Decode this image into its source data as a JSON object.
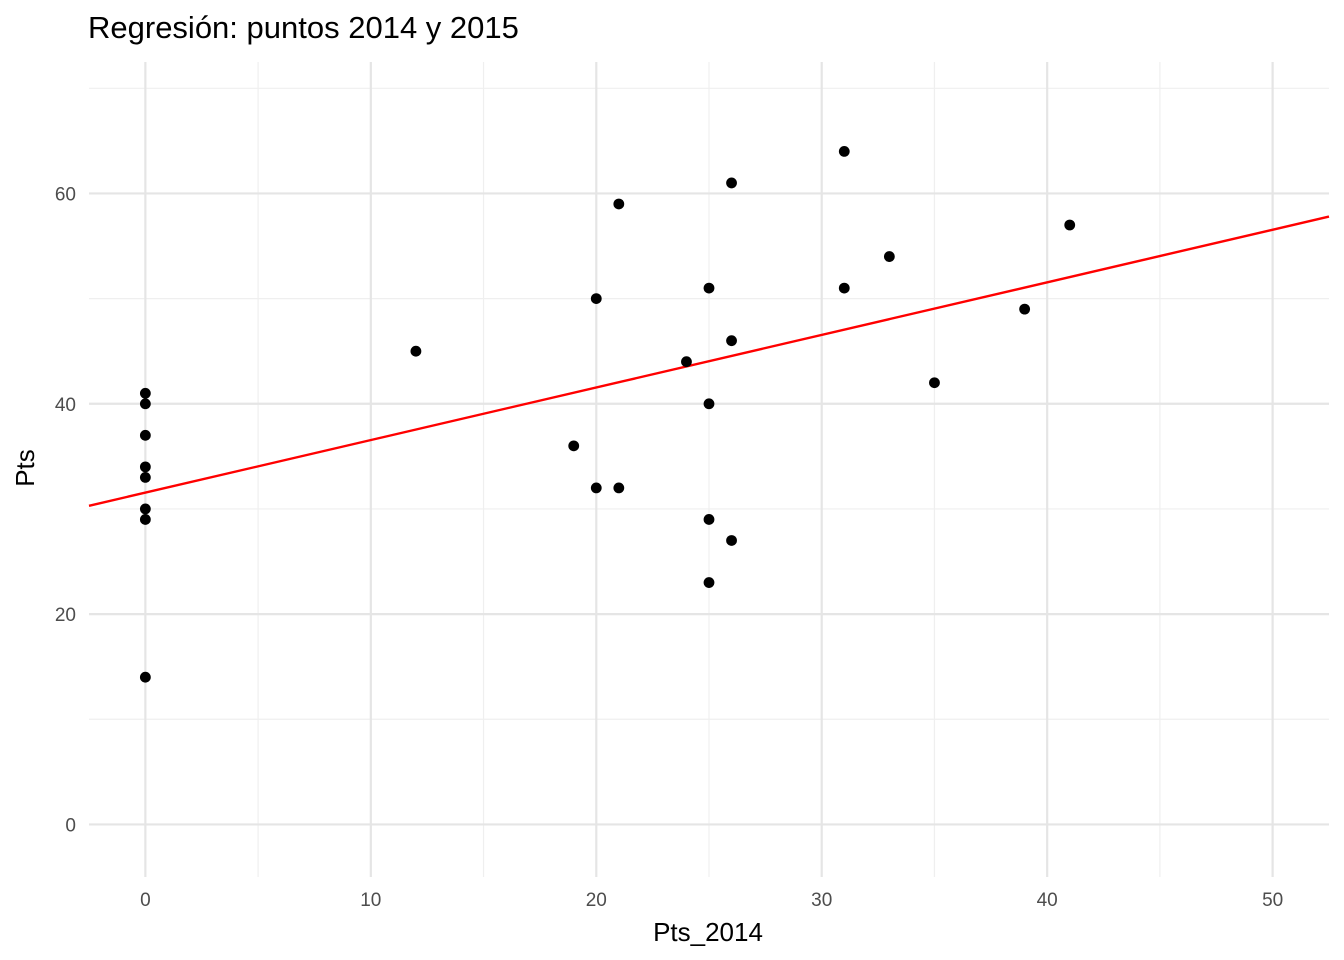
{
  "chart_data": {
    "type": "scatter",
    "title": "Regresión: puntos 2014 y 2015",
    "xlabel": "Pts_2014",
    "ylabel": "Pts",
    "xlim": [
      -2.5,
      52.5
    ],
    "ylim": [
      -5,
      72.5
    ],
    "x_ticks": [
      0,
      10,
      20,
      30,
      40,
      50
    ],
    "y_ticks": [
      0,
      20,
      40,
      60
    ],
    "x_ticks_minor": [
      5,
      15,
      25,
      35,
      45
    ],
    "y_ticks_minor": [
      10,
      30,
      50,
      70
    ],
    "grid": true,
    "legend": "none",
    "colors": {
      "points": "#000000",
      "regression_line": "#ff0000",
      "grid": "#ebebeb",
      "background": "#ffffff"
    },
    "series": [
      {
        "type": "scatter",
        "points": [
          {
            "x": 0,
            "y": 41
          },
          {
            "x": 0,
            "y": 40
          },
          {
            "x": 0,
            "y": 37
          },
          {
            "x": 0,
            "y": 34
          },
          {
            "x": 0,
            "y": 33
          },
          {
            "x": 0,
            "y": 30
          },
          {
            "x": 0,
            "y": 29
          },
          {
            "x": 0,
            "y": 14
          },
          {
            "x": 12,
            "y": 45
          },
          {
            "x": 19,
            "y": 36
          },
          {
            "x": 20,
            "y": 50
          },
          {
            "x": 20,
            "y": 32
          },
          {
            "x": 21,
            "y": 59
          },
          {
            "x": 21,
            "y": 32
          },
          {
            "x": 24,
            "y": 44
          },
          {
            "x": 25,
            "y": 51
          },
          {
            "x": 25,
            "y": 40
          },
          {
            "x": 25,
            "y": 29
          },
          {
            "x": 25,
            "y": 23
          },
          {
            "x": 26,
            "y": 61
          },
          {
            "x": 26,
            "y": 46
          },
          {
            "x": 26,
            "y": 27
          },
          {
            "x": 31,
            "y": 64
          },
          {
            "x": 31,
            "y": 51
          },
          {
            "x": 33,
            "y": 54
          },
          {
            "x": 35,
            "y": 42
          },
          {
            "x": 39,
            "y": 49
          },
          {
            "x": 41,
            "y": 57
          }
        ]
      },
      {
        "type": "line",
        "points": [
          {
            "x": -2.5,
            "y": 30.3
          },
          {
            "x": 52.5,
            "y": 57.8
          }
        ]
      }
    ]
  }
}
